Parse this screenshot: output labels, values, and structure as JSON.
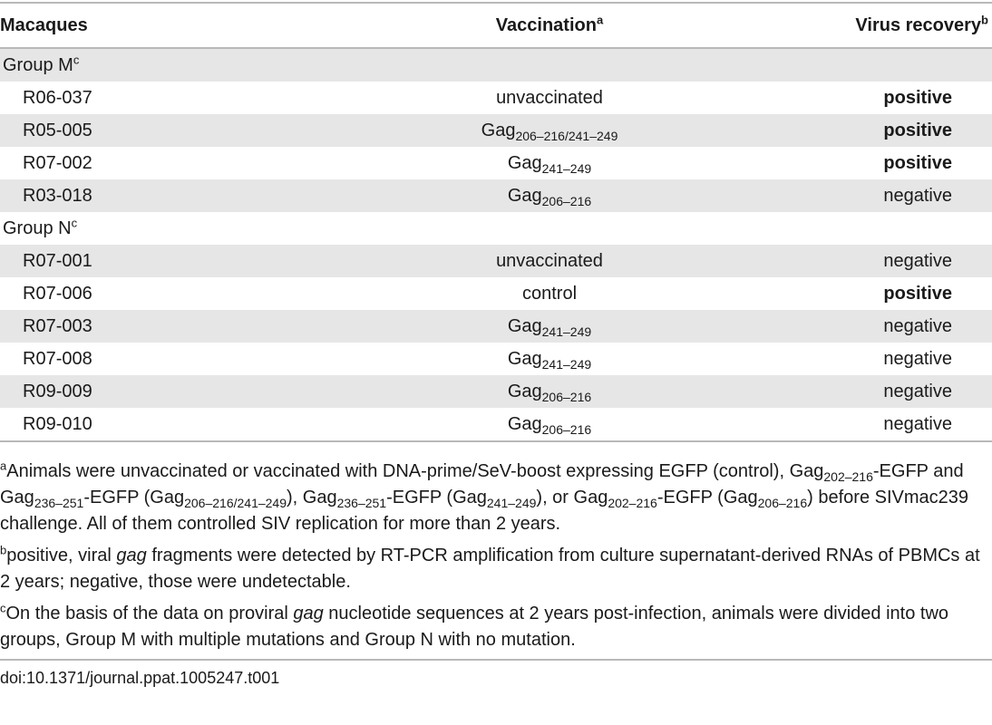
{
  "headers": {
    "macaques": "Macaques",
    "vaccination": "Vaccination",
    "vaccination_sup": "a",
    "recovery": "Virus recovery",
    "recovery_sup": "b"
  },
  "rows": [
    {
      "kind": "group",
      "label": "Group M",
      "sup": "c"
    },
    {
      "kind": "data",
      "id": "R06-037",
      "vac": "unvaccinated",
      "vac_sub": "",
      "recovery": "positive",
      "bold": true
    },
    {
      "kind": "data",
      "id": "R05-005",
      "vac": "Gag",
      "vac_sub": "206–216/241–249",
      "recovery": "positive",
      "bold": true
    },
    {
      "kind": "data",
      "id": "R07-002",
      "vac": "Gag",
      "vac_sub": "241–249",
      "recovery": "positive",
      "bold": true
    },
    {
      "kind": "data",
      "id": "R03-018",
      "vac": "Gag",
      "vac_sub": "206–216",
      "recovery": "negative",
      "bold": false
    },
    {
      "kind": "group",
      "label": "Group N",
      "sup": "c"
    },
    {
      "kind": "data",
      "id": "R07-001",
      "vac": "unvaccinated",
      "vac_sub": "",
      "recovery": "negative",
      "bold": false
    },
    {
      "kind": "data",
      "id": "R07-006",
      "vac": "control",
      "vac_sub": "",
      "recovery": "positive",
      "bold": true
    },
    {
      "kind": "data",
      "id": "R07-003",
      "vac": "Gag",
      "vac_sub": "241–249",
      "recovery": "negative",
      "bold": false
    },
    {
      "kind": "data",
      "id": "R07-008",
      "vac": "Gag",
      "vac_sub": "241–249",
      "recovery": "negative",
      "bold": false
    },
    {
      "kind": "data",
      "id": "R09-009",
      "vac": "Gag",
      "vac_sub": "206–216",
      "recovery": "negative",
      "bold": false
    },
    {
      "kind": "data",
      "id": "R09-010",
      "vac": "Gag",
      "vac_sub": "206–216",
      "recovery": "negative",
      "bold": false
    }
  ],
  "footnotes": [
    {
      "mark": "a",
      "parts": [
        {
          "t": "Animals were unvaccinated or vaccinated with DNA-prime/SeV-boost expressing EGFP (control), Gag"
        },
        {
          "t": "202–216",
          "s": "sub"
        },
        {
          "t": "-EGFP and Gag"
        },
        {
          "t": "236–251",
          "s": "sub"
        },
        {
          "t": "-EGFP (Gag"
        },
        {
          "t": "206–216/241–249",
          "s": "sub"
        },
        {
          "t": "), Gag"
        },
        {
          "t": "236–251",
          "s": "sub"
        },
        {
          "t": "-EGFP (Gag"
        },
        {
          "t": "241–249",
          "s": "sub"
        },
        {
          "t": "), or Gag"
        },
        {
          "t": "202–216",
          "s": "sub"
        },
        {
          "t": "-EGFP (Gag"
        },
        {
          "t": "206–216",
          "s": "sub"
        },
        {
          "t": ") before SIVmac239 challenge. All of them controlled SIV replication for more than 2 years."
        }
      ]
    },
    {
      "mark": "b",
      "parts": [
        {
          "t": "positive, viral "
        },
        {
          "t": "gag",
          "s": "i"
        },
        {
          "t": " fragments were detected by RT-PCR amplification from culture supernatant-derived RNAs of PBMCs at 2 years; negative, those were undetectable."
        }
      ]
    },
    {
      "mark": "c",
      "parts": [
        {
          "t": "On the basis of the data on proviral "
        },
        {
          "t": "gag",
          "s": "i"
        },
        {
          "t": " nucleotide sequences at 2 years post-infection, animals were divided into two groups, Group M with multiple mutations and Group N with no mutation."
        }
      ]
    }
  ],
  "doi": "doi:10.1371/journal.ppat.1005247.t001"
}
